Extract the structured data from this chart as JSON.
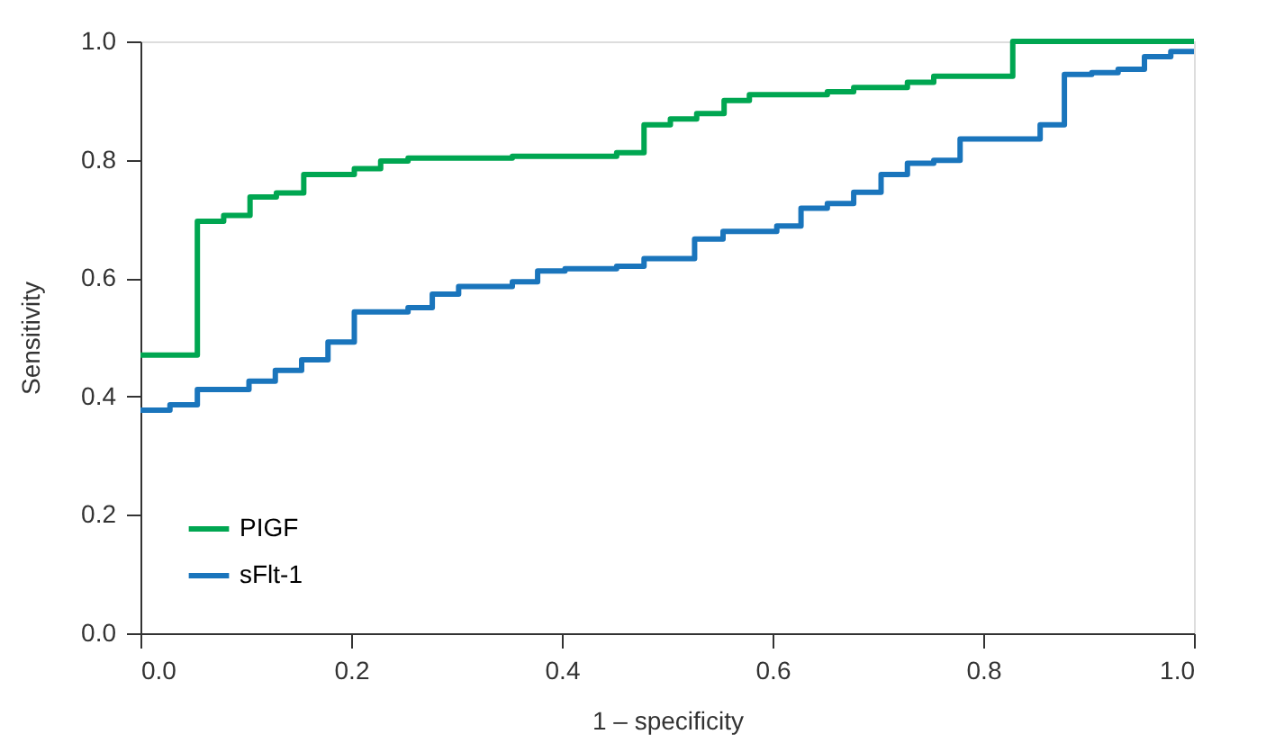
{
  "chart_data": {
    "type": "step",
    "xlabel": "1 – specificity",
    "ylabel": "Sensitivity",
    "xlim": [
      0,
      1
    ],
    "ylim": [
      0,
      1
    ],
    "xticks": [
      {
        "value": 0,
        "label": "0.0"
      },
      {
        "value": 0.2,
        "label": "0.2"
      },
      {
        "value": 0.4,
        "label": "0.4"
      },
      {
        "value": 0.6,
        "label": "0.6"
      },
      {
        "value": 0.8,
        "label": "0.8"
      },
      {
        "value": 1,
        "label": "1.0"
      }
    ],
    "yticks": [
      {
        "value": 0,
        "label": "0.0"
      },
      {
        "value": 0.2,
        "label": "0.2"
      },
      {
        "value": 0.4,
        "label": "0.4"
      },
      {
        "value": 0.6,
        "label": "0.6"
      },
      {
        "value": 0.8,
        "label": "0.8"
      },
      {
        "value": 1,
        "label": "1.0"
      }
    ],
    "grid": false,
    "legend": "bottom left",
    "line_style": "solid",
    "marker": "none",
    "series": [
      {
        "name": "PIGF",
        "color": "#00a651",
        "x": [
          0,
          0.054,
          0.079,
          0.104,
          0.129,
          0.155,
          0.203,
          0.228,
          0.254,
          0.353,
          0.452,
          0.478,
          0.503,
          0.528,
          0.554,
          0.578,
          0.652,
          0.677,
          0.728,
          0.753,
          0.828,
          1
        ],
        "values": [
          0.47,
          0.696,
          0.706,
          0.737,
          0.744,
          0.775,
          0.785,
          0.798,
          0.803,
          0.806,
          0.812,
          0.859,
          0.869,
          0.878,
          0.9,
          0.91,
          0.915,
          0.922,
          0.931,
          0.941,
          1.0,
          1.0
        ]
      },
      {
        "name": "sFlt-1",
        "color": "#1a75bc",
        "x": [
          0,
          0.028,
          0.054,
          0.103,
          0.128,
          0.153,
          0.178,
          0.203,
          0.254,
          0.277,
          0.302,
          0.353,
          0.377,
          0.403,
          0.452,
          0.478,
          0.526,
          0.553,
          0.604,
          0.627,
          0.652,
          0.677,
          0.703,
          0.728,
          0.753,
          0.778,
          0.854,
          0.877,
          0.903,
          0.928,
          0.953,
          0.978,
          1
        ],
        "values": [
          0.377,
          0.386,
          0.412,
          0.426,
          0.444,
          0.462,
          0.492,
          0.543,
          0.55,
          0.573,
          0.586,
          0.594,
          0.612,
          0.616,
          0.62,
          0.633,
          0.666,
          0.679,
          0.688,
          0.718,
          0.726,
          0.745,
          0.775,
          0.794,
          0.799,
          0.835,
          0.859,
          0.944,
          0.947,
          0.953,
          0.974,
          0.983,
          0.983
        ]
      }
    ]
  }
}
